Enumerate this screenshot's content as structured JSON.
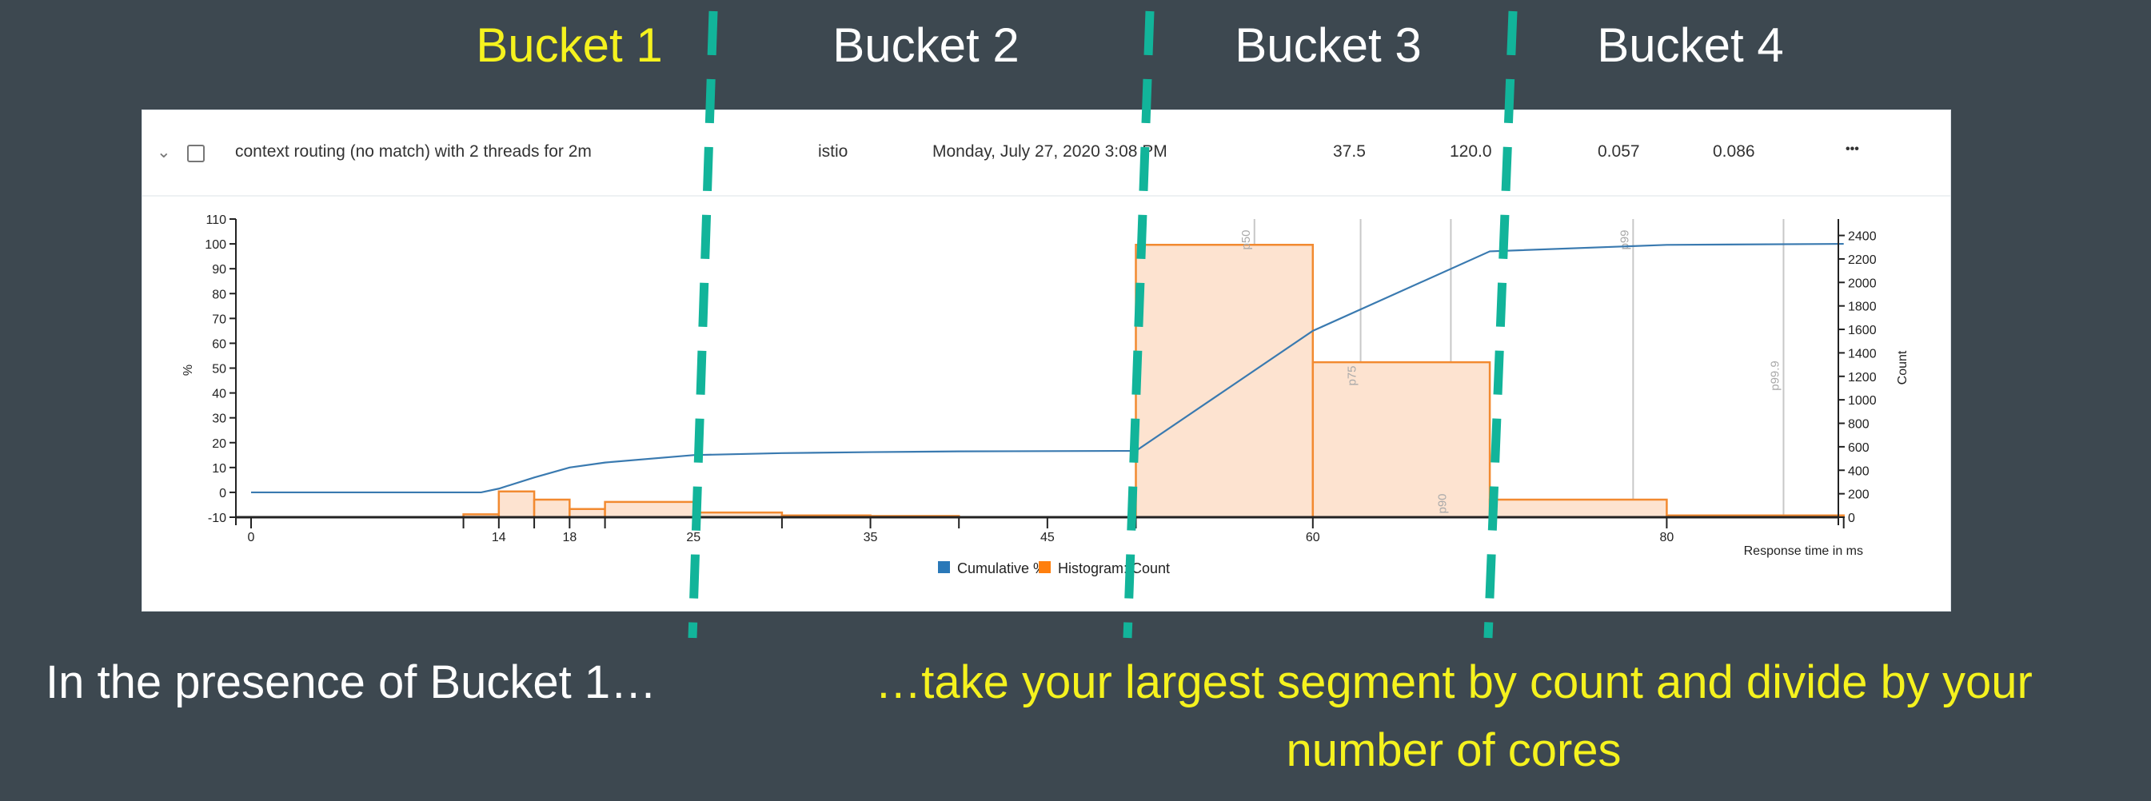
{
  "buckets": [
    {
      "label": "Bucket 1",
      "color": "#f5f21e"
    },
    {
      "label": "Bucket 2",
      "color": "#ffffff"
    },
    {
      "label": "Bucket 3",
      "color": "#ffffff"
    },
    {
      "label": "Bucket 4",
      "color": "#ffffff"
    }
  ],
  "row": {
    "title": "context routing (no match) with 2 threads for 2m",
    "label": "istio",
    "date": "Monday, July 27, 2020 3:08 PM",
    "col1": "37.5",
    "col2": "120.0",
    "col3": "0.057",
    "col4": "0.086",
    "more": "•••"
  },
  "captions": {
    "left": "In the presence of Bucket 1…",
    "right_line1": "…take your largest segment by count and divide by your",
    "right_line2": "number of cores"
  },
  "colors": {
    "background": "#3d4850",
    "accent_dash": "#12b49a",
    "highlight_text": "#f5f21e",
    "cumulative": "#3a7ab0",
    "histogram": "#f28a30",
    "histogram_fill": "#fde3d0"
  },
  "chart_data": {
    "type": "bar",
    "xlabel": "Response time in ms",
    "ylabel_left": "%",
    "ylabel_right": "Count",
    "ylim_left": [
      -10,
      110
    ],
    "ylim_right": [
      0,
      2540
    ],
    "left_ticks": [
      -10,
      0,
      10,
      20,
      30,
      40,
      50,
      60,
      70,
      80,
      90,
      100,
      110
    ],
    "right_ticks": [
      0,
      200,
      400,
      600,
      800,
      1000,
      1200,
      1400,
      1600,
      1800,
      2000,
      2200,
      2400
    ],
    "x_ticks": [
      0,
      12,
      14,
      16,
      18,
      20,
      25,
      30,
      35,
      40,
      45,
      50,
      60,
      70,
      80,
      90
    ],
    "x_tick_labels": {
      "0": "0",
      "14": "14",
      "18": "18",
      "25": "25",
      "35": "35",
      "45": "45",
      "60": "60",
      "80": "80"
    },
    "legend": [
      {
        "name": "Cumulative %",
        "color": "#2a78b8"
      },
      {
        "name": "Histogram: Count",
        "color": "#ff7f0e"
      }
    ],
    "legend_placement": "bottom",
    "histogram": [
      {
        "start": 12,
        "end": 14,
        "count": 25
      },
      {
        "start": 14,
        "end": 16,
        "count": 220
      },
      {
        "start": 16,
        "end": 18,
        "count": 150
      },
      {
        "start": 18,
        "end": 20,
        "count": 70
      },
      {
        "start": 20,
        "end": 25,
        "count": 130
      },
      {
        "start": 25,
        "end": 30,
        "count": 40
      },
      {
        "start": 30,
        "end": 35,
        "count": 15
      },
      {
        "start": 35,
        "end": 40,
        "count": 10
      },
      {
        "start": 50,
        "end": 60,
        "count": 2320
      },
      {
        "start": 60,
        "end": 70,
        "count": 1320
      },
      {
        "start": 70,
        "end": 80,
        "count": 150
      },
      {
        "start": 80,
        "end": 90,
        "count": 15
      }
    ],
    "cumulative": [
      [
        0,
        0
      ],
      [
        13,
        0
      ],
      [
        14,
        1.5
      ],
      [
        16,
        6
      ],
      [
        18,
        10
      ],
      [
        20,
        12
      ],
      [
        25,
        15
      ],
      [
        30,
        15.8
      ],
      [
        35,
        16.2
      ],
      [
        40,
        16.5
      ],
      [
        50,
        16.7
      ],
      [
        60,
        65
      ],
      [
        70,
        97
      ],
      [
        80,
        99.6
      ],
      [
        90,
        100
      ]
    ],
    "percentiles": [
      {
        "label": "p50",
        "value": 56.7
      },
      {
        "label": "p75",
        "value": 62.7
      },
      {
        "label": "p90",
        "value": 67.8
      },
      {
        "label": "p99",
        "value": 78.1
      },
      {
        "label": "p99.9",
        "value": 86.6
      }
    ]
  }
}
